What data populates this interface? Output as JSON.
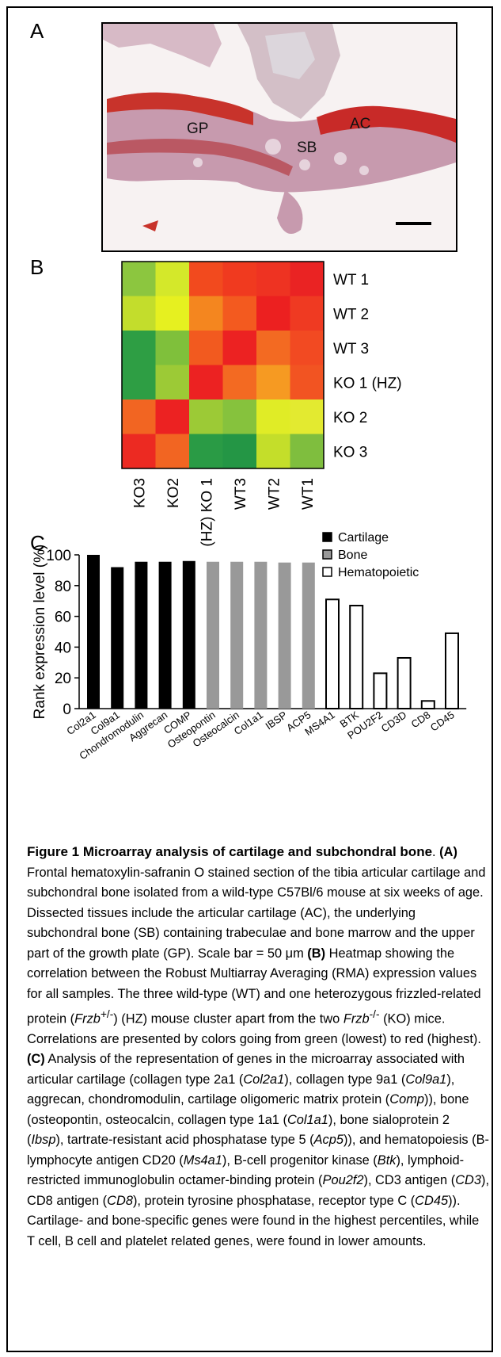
{
  "panel_labels": {
    "a": "A",
    "b": "B",
    "c": "C"
  },
  "photo": {
    "labels": {
      "gp": "GP",
      "sb": "SB",
      "ac": "AC"
    },
    "scale_bar": "scale-bar"
  },
  "chart_data": [
    {
      "type": "heatmap",
      "rows": [
        "WT 1",
        "WT 2",
        "WT 3",
        "KO 1 (HZ)",
        "KO 2",
        "KO 3"
      ],
      "columns": [
        "KO3",
        "KO2",
        "(HZ) KO 1",
        "WT3",
        "WT2",
        "WT1"
      ],
      "colors": [
        [
          "#8cc63f",
          "#d4e82a",
          "#f24a1e",
          "#f03a1f",
          "#ee3322",
          "#ea2323"
        ],
        [
          "#c3dd2c",
          "#e6f020",
          "#f4861f",
          "#f35a1f",
          "#ec2020",
          "#ef3a22"
        ],
        [
          "#2e9e44",
          "#7fc03b",
          "#f25a1f",
          "#ec2222",
          "#f36a22",
          "#f24a22"
        ],
        [
          "#2e9e44",
          "#9cca36",
          "#ec2222",
          "#f36a22",
          "#f69a22",
          "#f25422"
        ],
        [
          "#f26522",
          "#ec2222",
          "#9cca36",
          "#86c23d",
          "#e0ec26",
          "#e3ea30"
        ],
        [
          "#ec2a22",
          "#f26522",
          "#2a9b45",
          "#249645",
          "#c4de2a",
          "#7fbe3e"
        ]
      ],
      "legend_note": "green (lowest) to red (highest)"
    },
    {
      "type": "bar",
      "categories": [
        "Col2a1",
        "Col9a1",
        "Chondromodulin",
        "Aggrecan",
        "COMP",
        "Osteopontin",
        "Osteocalcin",
        "Col1a1",
        "IBSP",
        "ACP5",
        "MS4A1",
        "BTK",
        "POU2F2",
        "CD3D",
        "CD8",
        "CD45"
      ],
      "values": [
        100,
        92,
        95.5,
        95.5,
        96,
        95.5,
        95.5,
        95.5,
        95,
        95,
        71,
        67,
        23,
        33,
        5,
        49
      ],
      "groups": [
        "Cartilage",
        "Cartilage",
        "Cartilage",
        "Cartilage",
        "Cartilage",
        "Bone",
        "Bone",
        "Bone",
        "Bone",
        "Bone",
        "Hematopoietic",
        "Hematopoietic",
        "Hematopoietic",
        "Hematopoietic",
        "Hematopoietic",
        "Hematopoietic"
      ],
      "legend": [
        {
          "name": "Cartilage",
          "color": "#000000"
        },
        {
          "name": "Bone",
          "color": "#999999"
        },
        {
          "name": "Hematopoietic",
          "color": "#ffffff"
        }
      ],
      "ylabel": "Rank expression level (%)",
      "ylim": [
        0,
        100
      ],
      "yticks": [
        "0",
        "20",
        "40",
        "60",
        "80",
        "100"
      ],
      "legend_position": "top-right"
    }
  ],
  "caption": {
    "title": "Figure 1 Microarray analysis of cartilage and subchondral bone",
    "t1": ". ",
    "a_label": "(A)",
    "t2": " Frontal hematoxylin-safranin O stained section of the tibia articular cartilage and subchondral bone isolated from a wild-type C57Bl/6 mouse at six weeks of age. Dissected tissues include the articular cartilage (AC), the underlying subchondral bone (SB) containing trabeculae and bone marrow and the upper part of the growth plate (GP). Scale bar = 50 μm ",
    "b_label": "(B)",
    "t3": " Heatmap showing the correlation between the Robust Multiarray Averaging (RMA) expression values for all samples. The three wild-type (WT) and one heterozygous frizzled-related protein (",
    "frzb1": "Frzb",
    "sup1": "+/-",
    "t4": ") (HZ) mouse cluster apart from the two ",
    "frzb2": "Frzb",
    "sup2": "-/-",
    "t5": " (KO) mice. Correlations are presented by colors going from green (lowest) to red (highest). ",
    "c_label": "(C)",
    "t6": " Analysis of the representation of genes in the microarray associated with articular cartilage (collagen type 2a1 (",
    "g1": "Col2a1",
    "t7": "), collagen type 9a1 (",
    "g2": "Col9a1",
    "t8": "), aggrecan, chondromodulin, cartilage oligomeric matrix protein (",
    "g3": "Comp",
    "t9": ")), bone (osteopontin, osteocalcin, collagen type 1a1 (",
    "g4": "Col1a1",
    "t10": "), bone sialoprotein 2 (",
    "g5": "Ibsp",
    "t11": "), tartrate-resistant acid phosphatase type 5 (",
    "g6": "Acp5",
    "t12": ")), and hematopoiesis (B-lymphocyte antigen CD20 (",
    "g7": "Ms4a1",
    "t13": "), B-cell progenitor kinase (",
    "g8": "Btk",
    "t14": "), lymphoid-restricted immunoglobulin octamer-binding protein (",
    "g9": "Pou2f2",
    "t15": "), CD3 antigen (",
    "g10": "CD3",
    "t16": "), CD8 antigen (",
    "g11": "CD8",
    "t17": "), protein tyrosine phosphatase, receptor type C (",
    "g12": "CD45",
    "t18": ")). Cartilage- and bone-specific genes were found in the highest percentiles, while T cell, B cell and platelet related genes, were found in lower amounts."
  }
}
